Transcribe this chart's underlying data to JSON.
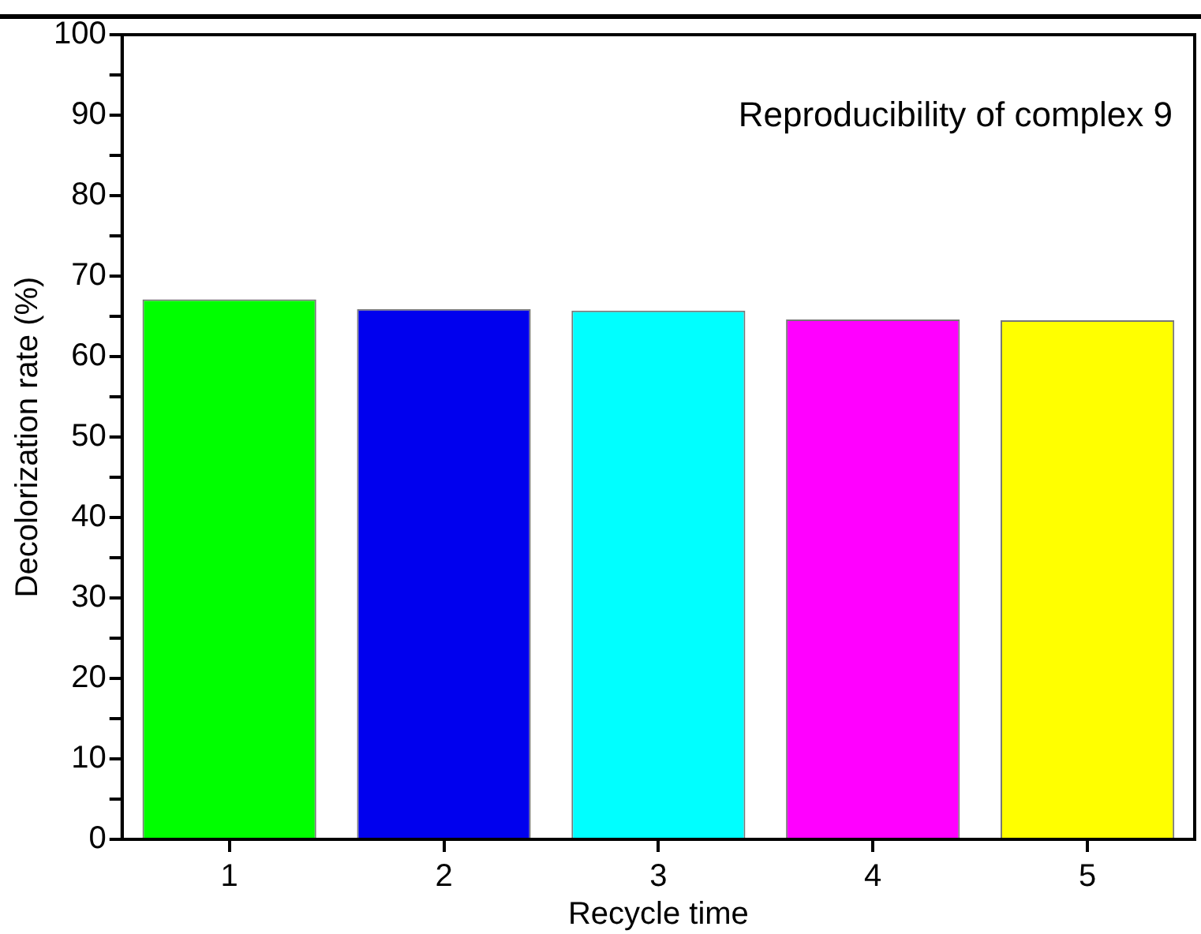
{
  "chart_data": {
    "type": "bar",
    "xlabel": "Recycle time",
    "ylabel": "Decolorization rate (%)",
    "categories": [
      "1",
      "2",
      "3",
      "4",
      "5"
    ],
    "values": [
      67.1,
      65.9,
      65.7,
      64.6,
      64.5
    ],
    "colors": [
      "#00ff00",
      "#0000ee",
      "#00ffff",
      "#ff00ff",
      "#ffff00"
    ],
    "ylim": [
      0,
      100
    ],
    "yticks": [
      0,
      {
        "value": 5,
        "label": null
      },
      10,
      {
        "value": 15,
        "label": null
      },
      20,
      {
        "value": 25,
        "label": null
      },
      30,
      {
        "value": 35,
        "label": null
      },
      40,
      {
        "value": 45,
        "label": null
      },
      50,
      {
        "value": 55,
        "label": null
      },
      60,
      {
        "value": 65,
        "label": null
      },
      70,
      {
        "value": 75,
        "label": null
      },
      80,
      {
        "value": 85,
        "label": null
      },
      90,
      {
        "value": 95,
        "label": null
      },
      100
    ],
    "annotations": [
      "Reproducibility of complex 9"
    ],
    "grid": false,
    "legend": false
  }
}
